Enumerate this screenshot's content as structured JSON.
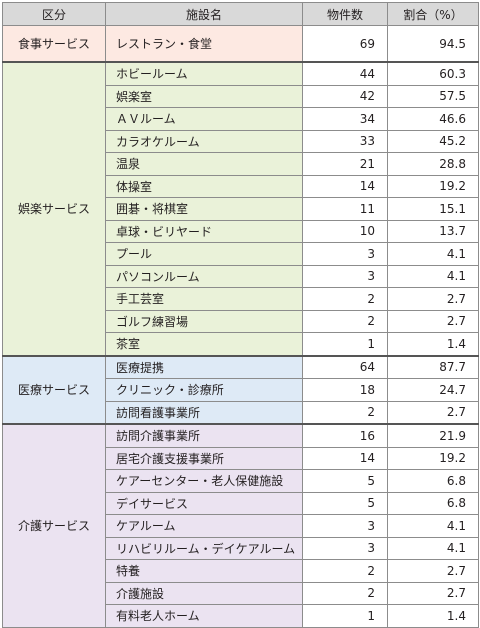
{
  "headers": {
    "category": "区分",
    "facility": "施設名",
    "count": "物件数",
    "ratio": "割合（%）"
  },
  "groups": [
    {
      "category": "食事サービス",
      "color": "#fde9e2",
      "rows": [
        {
          "name": "レストラン・食堂",
          "count": "69",
          "ratio": "94.5"
        }
      ]
    },
    {
      "category": "娯楽サービス",
      "color": "#eaf2d9",
      "rows": [
        {
          "name": "ホビールーム",
          "count": "44",
          "ratio": "60.3"
        },
        {
          "name": "娯楽室",
          "count": "42",
          "ratio": "57.5"
        },
        {
          "name": "ＡＶルーム",
          "count": "34",
          "ratio": "46.6"
        },
        {
          "name": "カラオケルーム",
          "count": "33",
          "ratio": "45.2"
        },
        {
          "name": "温泉",
          "count": "21",
          "ratio": "28.8"
        },
        {
          "name": "体操室",
          "count": "14",
          "ratio": "19.2"
        },
        {
          "name": "囲碁・将棋室",
          "count": "11",
          "ratio": "15.1"
        },
        {
          "name": "卓球・ビリヤード",
          "count": "10",
          "ratio": "13.7"
        },
        {
          "name": "プール",
          "count": "3",
          "ratio": "4.1"
        },
        {
          "name": "パソコンルーム",
          "count": "3",
          "ratio": "4.1"
        },
        {
          "name": "手工芸室",
          "count": "2",
          "ratio": "2.7"
        },
        {
          "name": "ゴルフ練習場",
          "count": "2",
          "ratio": "2.7"
        },
        {
          "name": "茶室",
          "count": "1",
          "ratio": "1.4"
        }
      ]
    },
    {
      "category": "医療サービス",
      "color": "#deeaf6",
      "rows": [
        {
          "name": "医療提携",
          "count": "64",
          "ratio": "87.7"
        },
        {
          "name": "クリニック・診療所",
          "count": "18",
          "ratio": "24.7"
        },
        {
          "name": "訪問看護事業所",
          "count": "2",
          "ratio": "2.7"
        }
      ]
    },
    {
      "category": "介護サービス",
      "color": "#ebe3f1",
      "rows": [
        {
          "name": "訪問介護事業所",
          "count": "16",
          "ratio": "21.9"
        },
        {
          "name": "居宅介護支援事業所",
          "count": "14",
          "ratio": "19.2"
        },
        {
          "name": "ケアーセンター・老人保健施設",
          "count": "5",
          "ratio": "6.8"
        },
        {
          "name": "デイサービス",
          "count": "5",
          "ratio": "6.8"
        },
        {
          "name": "ケアルーム",
          "count": "3",
          "ratio": "4.1"
        },
        {
          "name": "リハビリルーム・デイケアルーム",
          "count": "3",
          "ratio": "4.1"
        },
        {
          "name": "特養",
          "count": "2",
          "ratio": "2.7"
        },
        {
          "name": "介護施設",
          "count": "2",
          "ratio": "2.7"
        },
        {
          "name": "有料老人ホーム",
          "count": "1",
          "ratio": "1.4"
        }
      ]
    }
  ]
}
